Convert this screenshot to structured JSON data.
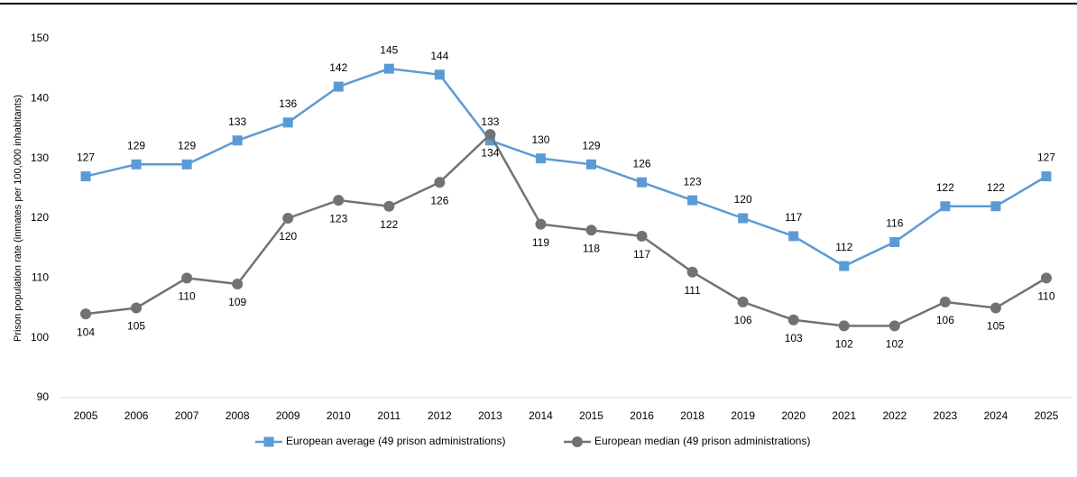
{
  "chart_data": {
    "type": "line",
    "y_label": "Prison population rate (inmates per 100,000 inhabitants)",
    "categories": [
      "2005",
      "2006",
      "2007",
      "2008",
      "2009",
      "2010",
      "2011",
      "2012",
      "2013",
      "2014",
      "2015",
      "2016",
      "2018",
      "2019",
      "2020",
      "2021",
      "2022",
      "2023",
      "2024",
      "2025"
    ],
    "series": [
      {
        "name": "European average (49 prison administrations)",
        "color": "#5b9bd5",
        "marker": "square",
        "label_position": "above",
        "values": [
          127,
          129,
          129,
          133,
          136,
          142,
          145,
          144,
          133,
          130,
          129,
          126,
          123,
          120,
          117,
          112,
          116,
          122,
          122,
          127
        ]
      },
      {
        "name": "European median (49 prison administrations)",
        "color": "#767171",
        "marker": "circle",
        "label_position": "below",
        "values": [
          104,
          105,
          110,
          109,
          120,
          123,
          122,
          126,
          134,
          119,
          118,
          117,
          111,
          106,
          103,
          102,
          102,
          106,
          105,
          110
        ]
      }
    ],
    "ylim": [
      90,
      150
    ],
    "yticks": [
      90,
      100,
      110,
      120,
      130,
      140,
      150
    ],
    "grid": false,
    "legend": "bottom"
  }
}
